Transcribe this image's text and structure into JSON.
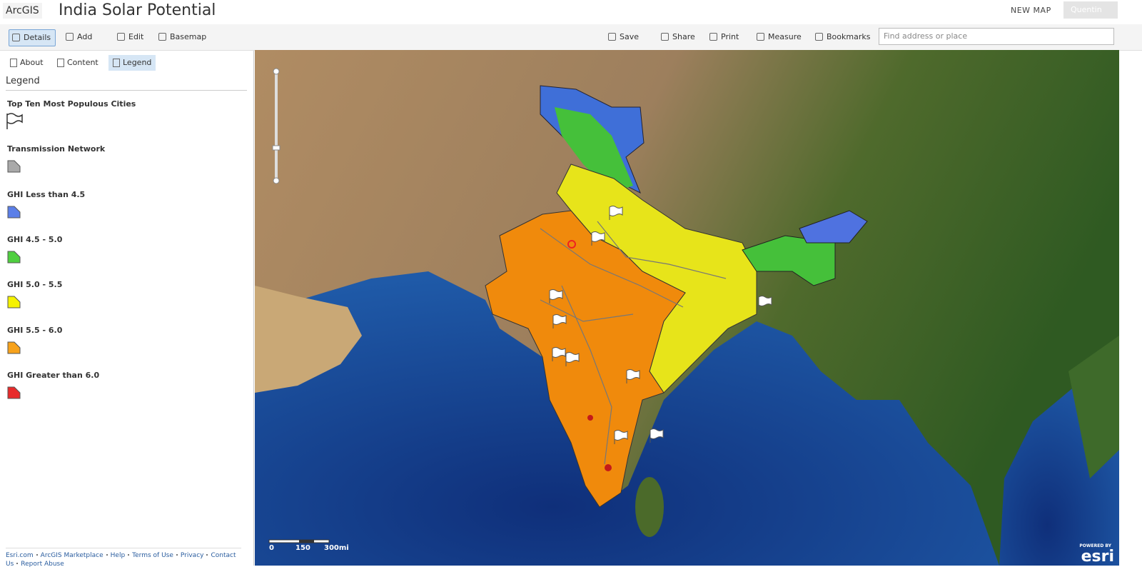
{
  "header": {
    "brand": "ArcGIS",
    "title": "India Solar Potential",
    "new_map": "NEW MAP",
    "user": "Quentin"
  },
  "toolbar": {
    "left": [
      "Details",
      "Add",
      "Edit",
      "Basemap"
    ],
    "right": [
      "Save",
      "Share",
      "Print",
      "Measure",
      "Bookmarks"
    ],
    "search": "Find address or place"
  },
  "panel": {
    "tabs": [
      "About",
      "Content",
      "Legend"
    ],
    "heading": "Legend",
    "layers": [
      {
        "name": "Top Ten Most Populous Cities",
        "symbol": "flag"
      },
      {
        "name": "Transmission Network",
        "color": "#a9a9a9"
      },
      {
        "name": "GHI Less than 4.5",
        "color": "#5b7fe8"
      },
      {
        "name": "GHI 4.5 - 5.0",
        "color": "#4fcf3f"
      },
      {
        "name": "GHI 5.0 - 5.5",
        "color": "#f5f200"
      },
      {
        "name": "GHI 5.5 - 6.0",
        "color": "#f7a21b"
      },
      {
        "name": "GHI Greater than 6.0",
        "color": "#e82a2a"
      }
    ]
  },
  "footer": {
    "links": [
      "Esri.com",
      "ArcGIS Marketplace",
      "Help",
      "Terms of Use",
      "Privacy",
      "Contact Us",
      "Report Abuse"
    ]
  },
  "map": {
    "scale_labels": [
      "0",
      "150",
      "300mi"
    ],
    "powered": "POWERED BY",
    "logo": "esri"
  }
}
